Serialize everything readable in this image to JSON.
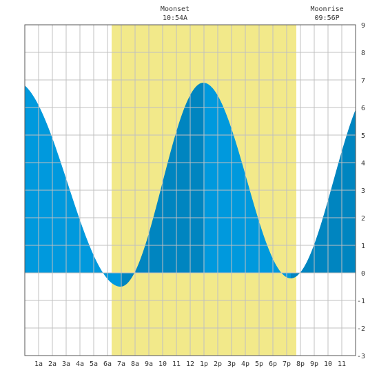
{
  "chart_data": {
    "type": "area",
    "title": "",
    "xlabel": "",
    "ylabel": "",
    "x_ticks": [
      "1a",
      "2a",
      "3a",
      "4a",
      "5a",
      "6a",
      "7a",
      "8a",
      "9a",
      "10",
      "11",
      "12",
      "1p",
      "2p",
      "3p",
      "4p",
      "5p",
      "6p",
      "7p",
      "8p",
      "9p",
      "10",
      "11"
    ],
    "y_ticks": [
      -3,
      -2,
      -1,
      0,
      1,
      2,
      3,
      4,
      5,
      6,
      7,
      8,
      9
    ],
    "xlim": [
      0,
      24
    ],
    "ylim": [
      -3,
      9
    ],
    "grid": true,
    "daylight": {
      "start_hour": 6.3,
      "end_hour": 19.7
    },
    "annotations": [
      {
        "label": "Moonset",
        "time": "10:54A",
        "hour": 10.9
      },
      {
        "label": "Moonrise",
        "time": "09:56P",
        "hour": 21.93
      }
    ],
    "tide_extremes": [
      {
        "hour": -0.7,
        "height": 6.95
      },
      {
        "hour": 6.95,
        "height": -0.5
      },
      {
        "hour": 12.95,
        "height": 6.9
      },
      {
        "hour": 19.3,
        "height": -0.2
      },
      {
        "hour": 25.5,
        "height": 6.9
      }
    ],
    "series": [
      {
        "name": "",
        "x": [
          0,
          1,
          2,
          3,
          4,
          5,
          6,
          7,
          8,
          9,
          10,
          11,
          12,
          13,
          14,
          15,
          16,
          17,
          18,
          19,
          20,
          21,
          22,
          23,
          24
        ],
        "values": [
          6.8,
          6.5,
          5.6,
          4.3,
          2.8,
          1.4,
          0.3,
          -0.5,
          -0.2,
          1.1,
          2.9,
          4.9,
          6.4,
          6.9,
          6.4,
          5.1,
          3.4,
          1.6,
          0.3,
          -0.15,
          0.3,
          1.4,
          2.9,
          4.4,
          5.7
        ]
      }
    ],
    "colors": {
      "daylight": "#f2e98a",
      "falling": "#0099dd",
      "rising": "#0085c0",
      "grid": "#c0c0c0",
      "axis": "#555555",
      "text": "#333333"
    }
  }
}
